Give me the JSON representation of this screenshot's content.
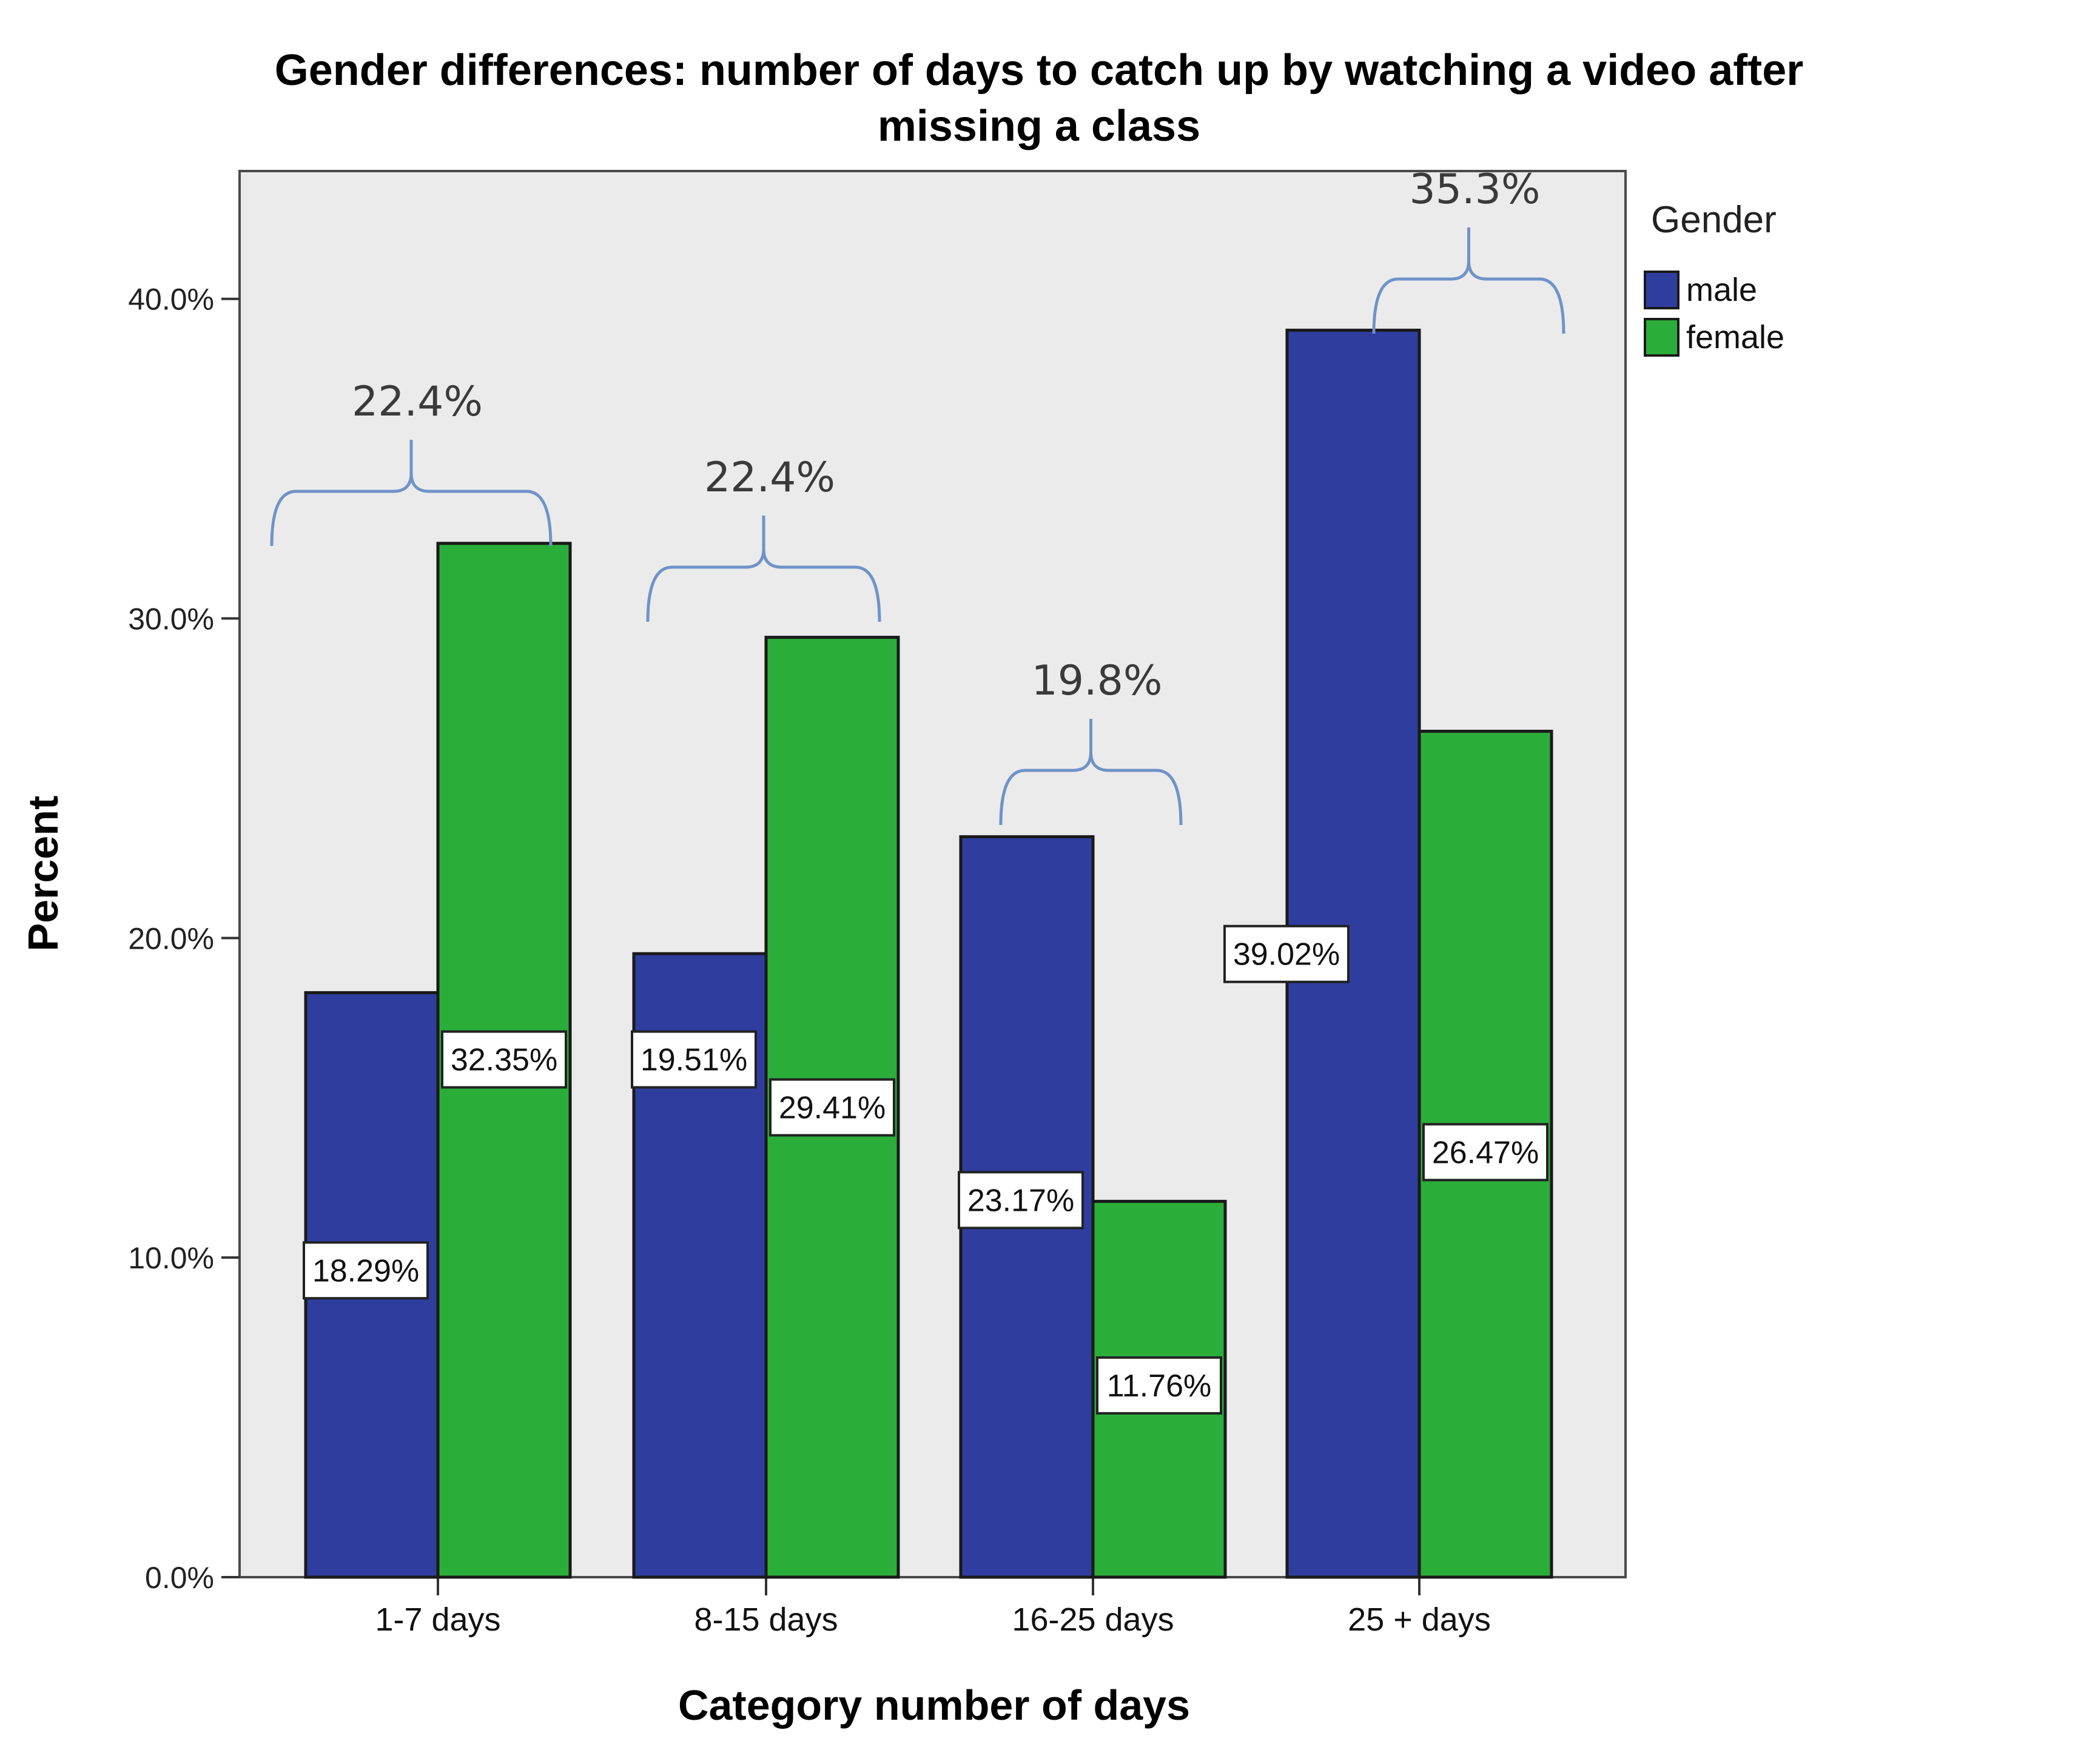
{
  "chart_data": {
    "type": "bar",
    "title": "Gender differences: number of days to catch up by watching a video after missing a class",
    "title_lines": [
      "Gender differences: number of days to catch up by watching a video after",
      "missing a class"
    ],
    "xlabel": "Category number of days",
    "ylabel": "Percent",
    "categories": [
      "1-7 days",
      "8-15 days",
      "16-25 days",
      "25 + days"
    ],
    "ylim": [
      0,
      44
    ],
    "yticks": [
      0,
      10,
      20,
      30,
      40
    ],
    "ytick_labels": [
      "0.0%",
      "10.0%",
      "20.0%",
      "30.0%",
      "40.0%"
    ],
    "grid": false,
    "legend": {
      "title": "Gender",
      "placement": "right"
    },
    "series": [
      {
        "name": "male",
        "color": "#2f3e9e",
        "values": [
          18.29,
          19.51,
          23.17,
          39.02
        ],
        "labels": [
          "18.29%",
          "19.51%",
          "23.17%",
          "39.02%"
        ]
      },
      {
        "name": "female",
        "color": "#2bad3a",
        "values": [
          32.35,
          29.41,
          11.76,
          26.47
        ],
        "labels": [
          "32.35%",
          "29.41%",
          "11.76%",
          "26.47%"
        ]
      }
    ],
    "annotations": [
      "22.4%",
      "22.4%",
      "19.8%",
      "35.3%"
    ],
    "plot_background": "#ebebeb",
    "bracket_color": "#6f93c8",
    "annotation_color": "#3a3a3a"
  }
}
